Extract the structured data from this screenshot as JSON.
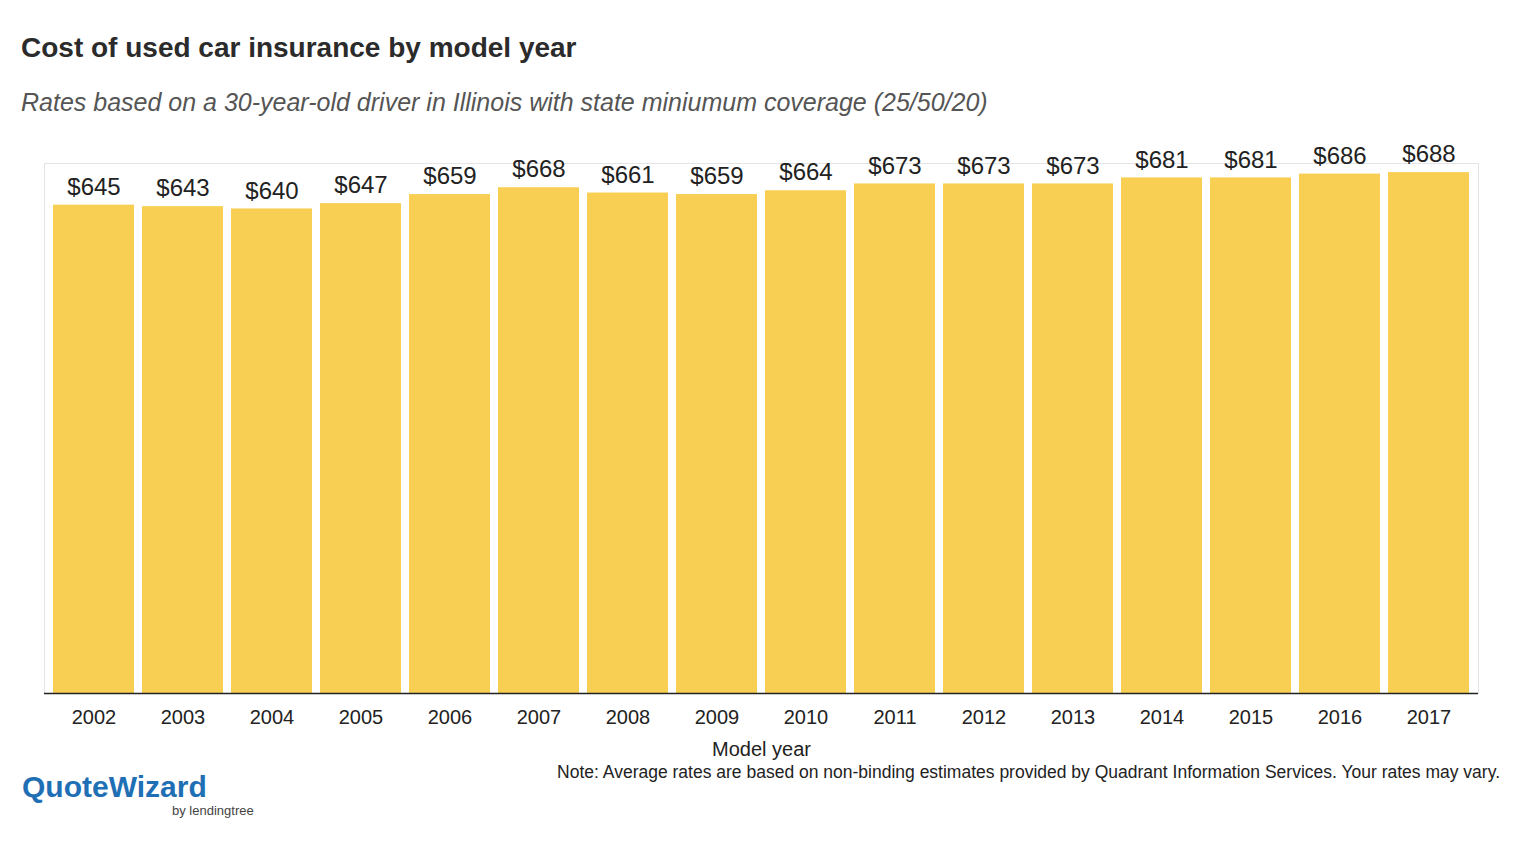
{
  "chart_data": {
    "type": "bar",
    "title": "Cost of used car insurance by model year",
    "subtitle": "Rates based on a 30-year-old driver in Illinois with state miniumum coverage (25/50/20)",
    "x_label": "Model year",
    "note": "Note: Average rates are based on non-binding estimates provided by Quadrant Information Services. Your rates may vary.",
    "logo": "QuoteWizard",
    "logo_tagline": "by lendingtree",
    "categories": [
      "2002",
      "2003",
      "2004",
      "2005",
      "2006",
      "2007",
      "2008",
      "2009",
      "2010",
      "2011",
      "2012",
      "2013",
      "2014",
      "2015",
      "2016",
      "2017"
    ],
    "values": [
      645,
      643,
      640,
      647,
      659,
      668,
      661,
      659,
      664,
      673,
      673,
      673,
      681,
      681,
      686,
      688
    ],
    "value_labels": [
      "$645",
      "$643",
      "$640",
      "$647",
      "$659",
      "$668",
      "$661",
      "$659",
      "$664",
      "$673",
      "$673",
      "$673",
      "$681",
      "$681",
      "$686",
      "$688"
    ],
    "data_labels": true,
    "color": "#f9cf53",
    "ylim": [
      0,
      700
    ],
    "yticks": [],
    "grid": false,
    "tick_labels": "x"
  }
}
